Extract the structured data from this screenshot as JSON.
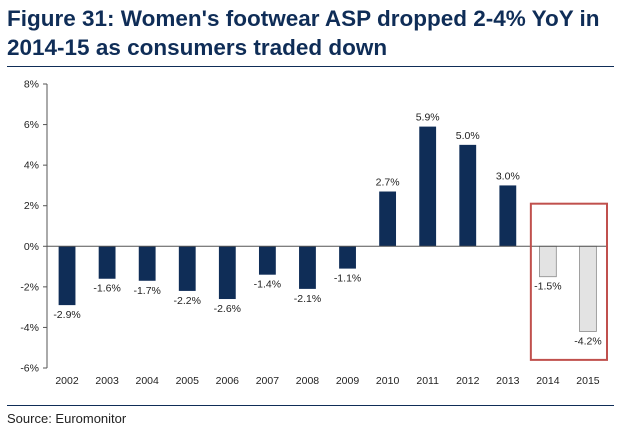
{
  "chart_data": {
    "type": "bar",
    "title": "Figure 31: Women's footwear ASP dropped 2-4% YoY in 2014-15 as consumers traded down",
    "xlabel": "",
    "ylabel": "",
    "categories": [
      "2002",
      "2003",
      "2004",
      "2005",
      "2006",
      "2007",
      "2008",
      "2009",
      "2010",
      "2011",
      "2012",
      "2013",
      "2014",
      "2015"
    ],
    "values": [
      -2.9,
      -1.6,
      -1.7,
      -2.2,
      -2.6,
      -1.4,
      -2.1,
      -1.1,
      2.7,
      5.9,
      5.0,
      3.0,
      -1.5,
      -4.2
    ],
    "data_labels": [
      "-2.9%",
      "-1.6%",
      "-1.7%",
      "-2.2%",
      "-2.6%",
      "-1.4%",
      "-2.1%",
      "-1.1%",
      "2.7%",
      "5.9%",
      "5.0%",
      "3.0%",
      "-1.5%",
      "-4.2%"
    ],
    "ylim": [
      -6,
      8
    ],
    "yticks": [
      8,
      6,
      4,
      2,
      0,
      -2,
      -4,
      -6
    ],
    "ytick_labels": [
      "8%",
      "6%",
      "4%",
      "2%",
      "0%",
      "-2%",
      "-4%",
      "-6%"
    ],
    "highlighted_categories": [
      "2014",
      "2015"
    ],
    "grid": false,
    "legend": "none"
  },
  "source": "Source: Euromonitor",
  "colors": {
    "bar": "#0f2d57",
    "highlight_bar": "#e3e3e3",
    "highlight_box": "#c0504d",
    "title": "#0f2d57",
    "axis": "#555555",
    "text": "#222222"
  }
}
